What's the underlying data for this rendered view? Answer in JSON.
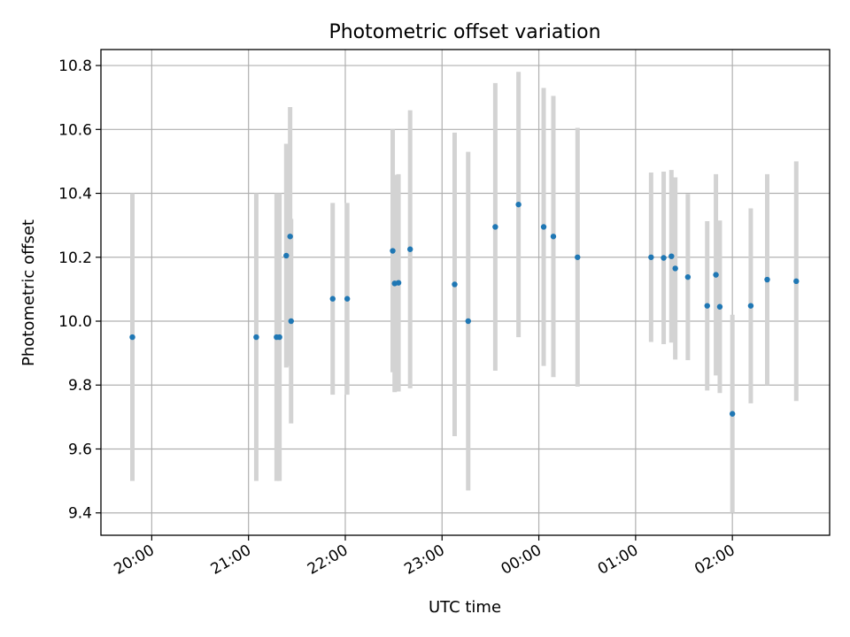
{
  "chart_data": {
    "type": "scatter",
    "title": "Photometric offset variation",
    "xlabel": "UTC time",
    "ylabel": "Photometric offset",
    "xlim_hours": [
      19.475,
      27.005
    ],
    "ylim": [
      9.33,
      10.85
    ],
    "grid": true,
    "legend": "none",
    "colors": {
      "point": "#1f77b4",
      "errorbar": "#d3d3d3",
      "grid": "#b0b0b0",
      "axis": "#000000"
    },
    "x_ticks": [
      {
        "t": 20,
        "label": "20:00"
      },
      {
        "t": 21,
        "label": "21:00"
      },
      {
        "t": 22,
        "label": "22:00"
      },
      {
        "t": 23,
        "label": "23:00"
      },
      {
        "t": 24,
        "label": "00:00"
      },
      {
        "t": 25,
        "label": "01:00"
      },
      {
        "t": 26,
        "label": "02:00"
      }
    ],
    "y_ticks": [
      {
        "v": 9.4,
        "label": "9.4"
      },
      {
        "v": 9.6,
        "label": "9.6"
      },
      {
        "v": 9.8,
        "label": "9.8"
      },
      {
        "v": 10.0,
        "label": "10.0"
      },
      {
        "v": 10.2,
        "label": "10.2"
      },
      {
        "v": 10.4,
        "label": "10.4"
      },
      {
        "v": 10.6,
        "label": "10.6"
      },
      {
        "v": 10.8,
        "label": "10.8"
      }
    ],
    "points": [
      {
        "t": 19.8,
        "y": 9.95,
        "err": 0.45
      },
      {
        "t": 21.08,
        "y": 9.95,
        "err": 0.45
      },
      {
        "t": 21.29,
        "y": 9.95,
        "err": 0.45
      },
      {
        "t": 21.32,
        "y": 9.95,
        "err": 0.45
      },
      {
        "t": 21.39,
        "y": 10.205,
        "err": 0.35
      },
      {
        "t": 21.43,
        "y": 10.265,
        "err": 0.405
      },
      {
        "t": 21.44,
        "y": 10.0,
        "err": 0.32
      },
      {
        "t": 21.87,
        "y": 10.07,
        "err": 0.3
      },
      {
        "t": 22.02,
        "y": 10.07,
        "err": 0.3
      },
      {
        "t": 22.49,
        "y": 10.22,
        "err": 0.38
      },
      {
        "t": 22.51,
        "y": 10.118,
        "err": 0.34
      },
      {
        "t": 22.55,
        "y": 10.12,
        "err": 0.34
      },
      {
        "t": 22.67,
        "y": 10.225,
        "err": 0.435
      },
      {
        "t": 23.13,
        "y": 10.115,
        "err": 0.475
      },
      {
        "t": 23.27,
        "y": 10.0,
        "err": 0.53
      },
      {
        "t": 23.55,
        "y": 10.295,
        "err": 0.45
      },
      {
        "t": 23.79,
        "y": 10.365,
        "err": 0.415
      },
      {
        "t": 24.05,
        "y": 10.295,
        "err": 0.435
      },
      {
        "t": 24.15,
        "y": 10.265,
        "err": 0.44
      },
      {
        "t": 24.4,
        "y": 10.2,
        "err": 0.405
      },
      {
        "t": 25.16,
        "y": 10.2,
        "err": 0.265
      },
      {
        "t": 25.29,
        "y": 10.198,
        "err": 0.27
      },
      {
        "t": 25.37,
        "y": 10.203,
        "err": 0.27
      },
      {
        "t": 25.41,
        "y": 10.165,
        "err": 0.285
      },
      {
        "t": 25.54,
        "y": 10.138,
        "err": 0.26
      },
      {
        "t": 25.74,
        "y": 10.048,
        "err": 0.265
      },
      {
        "t": 25.83,
        "y": 10.145,
        "err": 0.315
      },
      {
        "t": 25.87,
        "y": 10.045,
        "err": 0.27
      },
      {
        "t": 26.0,
        "y": 9.71,
        "err": 0.31
      },
      {
        "t": 26.19,
        "y": 10.048,
        "err": 0.305
      },
      {
        "t": 26.36,
        "y": 10.13,
        "err": 0.33
      },
      {
        "t": 26.66,
        "y": 10.125,
        "err": 0.375
      }
    ]
  }
}
